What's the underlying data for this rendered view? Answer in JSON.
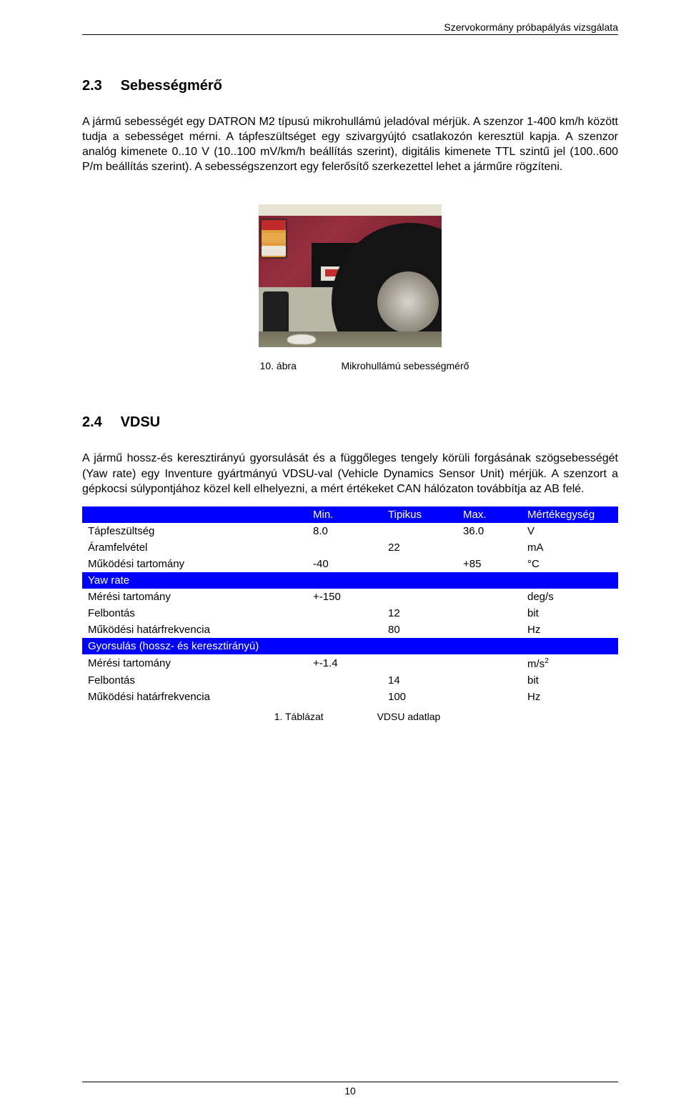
{
  "running_head": "Szervokormány próbapályás vizsgálata",
  "page_number": "10",
  "sec23": {
    "num": "2.3",
    "title": "Sebességmérő",
    "para": "A jármű sebességét egy DATRON M2 típusú mikrohullámú jeladóval mérjük. A szenzor 1-400 km/h között tudja a sebességet mérni. A tápfeszültséget egy szivargyújtó csatlakozón keresztül kapja. A szenzor analóg kimenete 0..10 V (10..100 mV/km/h beállítás szerint), digitális kimenete TTL szintű jel (100..600 P/m beállítás szerint). A sebességszenzort egy felerősítő szerkezettel lehet a járműre rögzíteni."
  },
  "fig10": {
    "label": "10. ábra",
    "caption": "Mikrohullámú sebességmérő"
  },
  "sec24": {
    "num": "2.4",
    "title": "VDSU",
    "para": "A jármű hossz-és keresztirányú gyorsulását és a függőleges tengely körüli forgásának szögsebességét (Yaw rate) egy Inventure gyártmányú VDSU-val (Vehicle Dynamics Sensor Unit) mérjük. A szenzort a gépkocsi súlypontjához közel kell elhelyezni, a mért értékeket CAN hálózaton továbbítja az AB felé."
  },
  "table1": {
    "headers": [
      "",
      "Min.",
      "Tipikus",
      "Max.",
      "Mértékegység"
    ],
    "header_bg": "#0000ff",
    "header_fg": "#ffffff",
    "row_bg": "#ffffff",
    "row_fg": "#000000",
    "rows": [
      {
        "type": "data",
        "cells": [
          "Tápfeszültség",
          "8.0",
          "",
          "36.0",
          "V"
        ]
      },
      {
        "type": "data",
        "cells": [
          "Áramfelvétel",
          "",
          "22",
          "",
          "mA"
        ]
      },
      {
        "type": "data",
        "cells": [
          "Működési tartomány",
          "-40",
          "",
          "+85",
          "°C"
        ]
      },
      {
        "type": "section",
        "label": "Yaw rate"
      },
      {
        "type": "data",
        "cells": [
          "Mérési tartomány",
          "+-150",
          "",
          "",
          "deg/s"
        ]
      },
      {
        "type": "data",
        "cells": [
          "Felbontás",
          "",
          "12",
          "",
          "bit"
        ]
      },
      {
        "type": "data",
        "cells": [
          "Működési határfrekvencia",
          "",
          "80",
          "",
          "Hz"
        ]
      },
      {
        "type": "section",
        "label": "Gyorsulás (hossz- és keresztirányú)"
      },
      {
        "type": "data",
        "cells": [
          "Mérési tartomány",
          "+-1.4",
          "",
          "",
          "m/s²"
        ]
      },
      {
        "type": "data",
        "cells": [
          "Felbontás",
          "",
          "14",
          "",
          "bit"
        ]
      },
      {
        "type": "data",
        "cells": [
          "Működési határfrekvencia",
          "",
          "100",
          "",
          "Hz"
        ]
      }
    ],
    "caption_label": "1. Táblázat",
    "caption_text": "VDSU adatlap"
  }
}
